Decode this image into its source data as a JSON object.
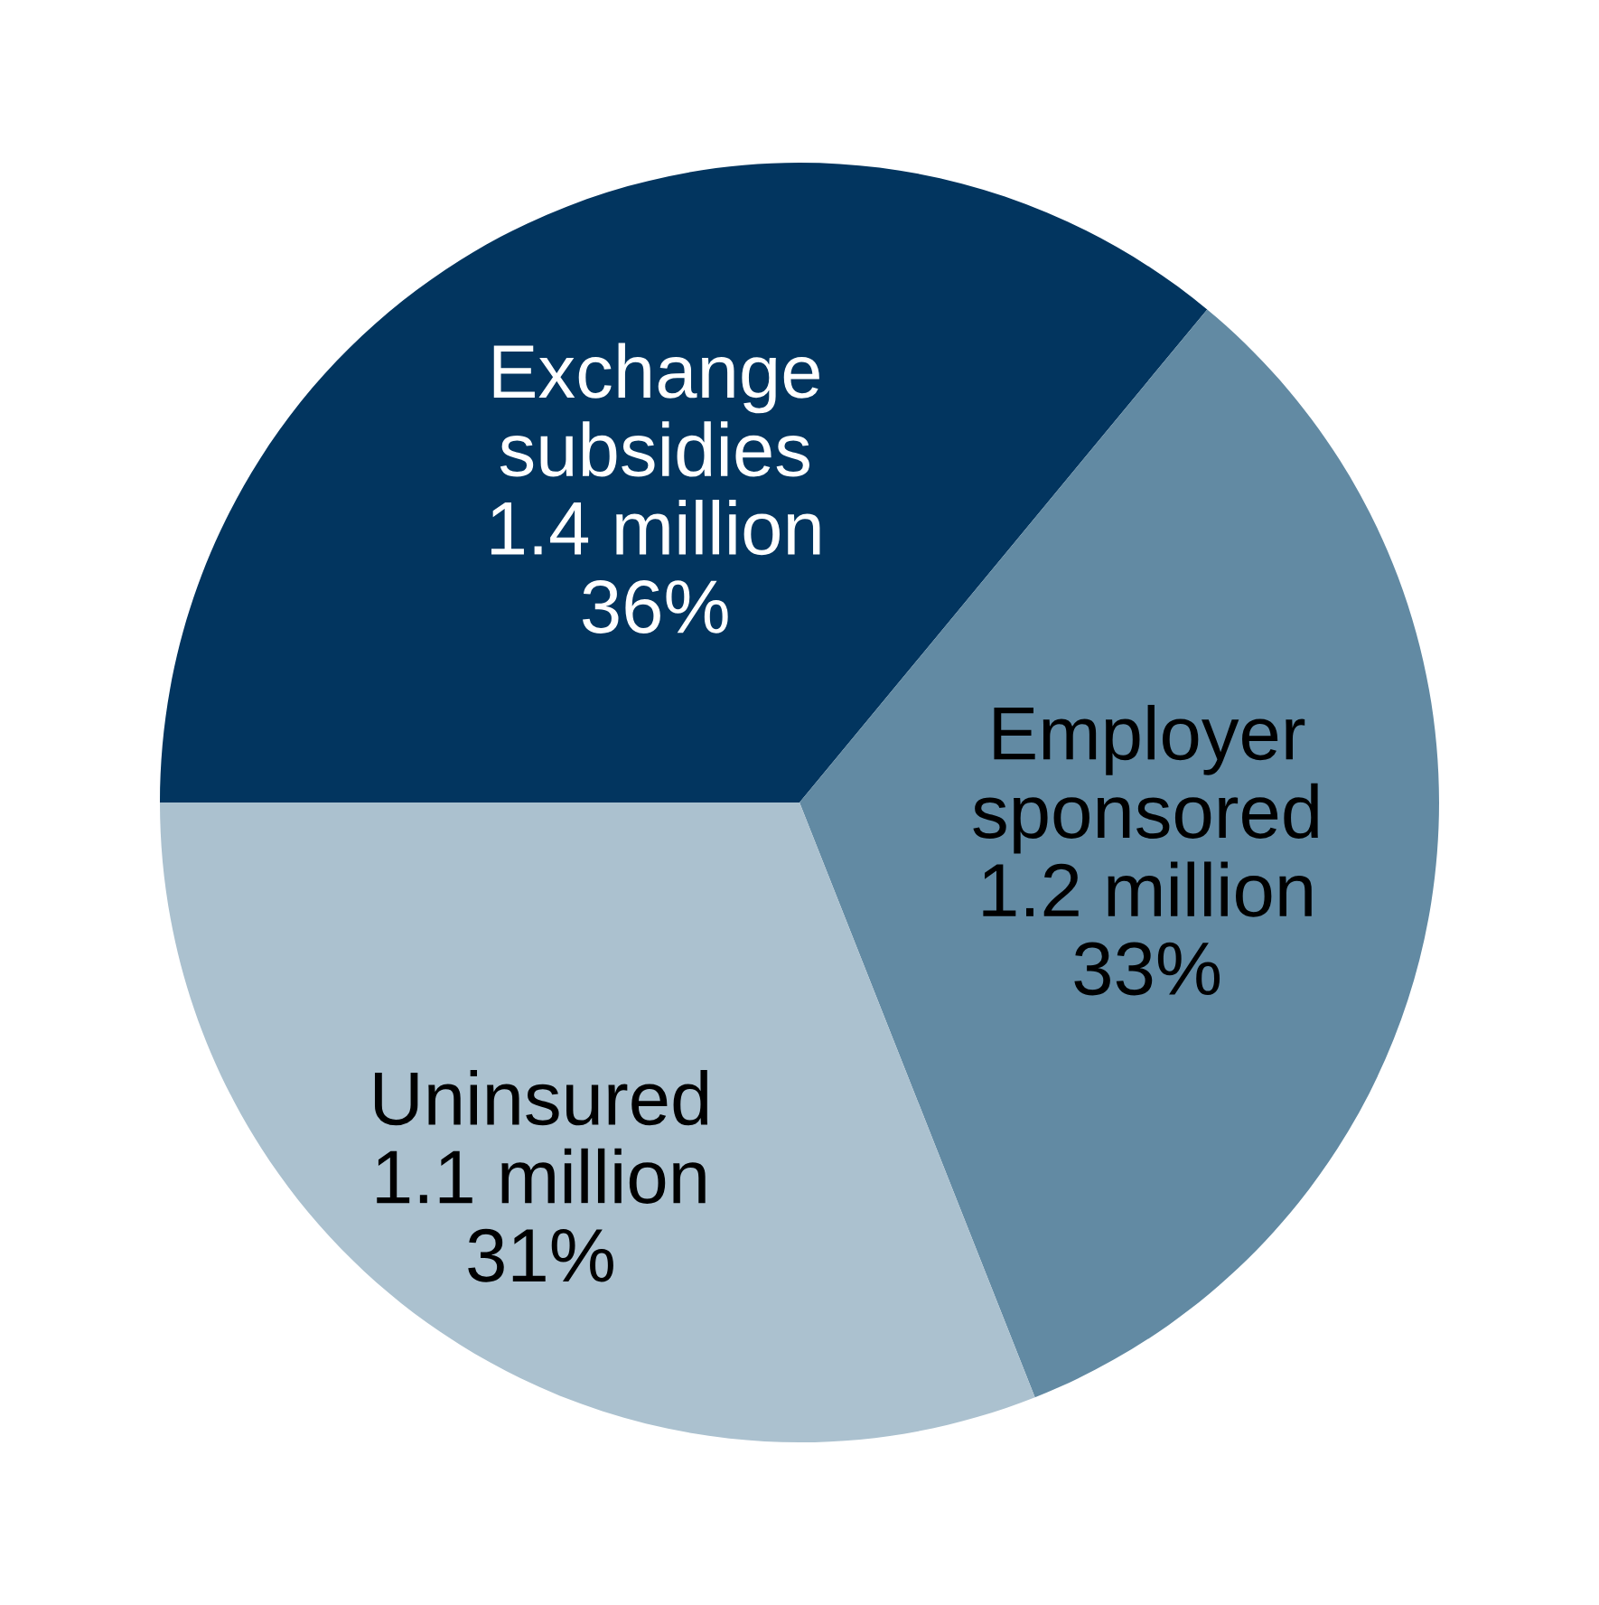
{
  "chart_data": {
    "type": "pie",
    "categories": [
      "Exchange\nsubsidies",
      "Employer\nsponsored",
      "Uninsured"
    ],
    "values": [
      36,
      33,
      31
    ],
    "value_labels": [
      "1.4 million\n36%",
      "1.2 million\n33%",
      "1.1 million\n31%"
    ],
    "colors": [
      "#02355f",
      "#628aa3",
      "#abc1cf"
    ],
    "legend": false
  }
}
